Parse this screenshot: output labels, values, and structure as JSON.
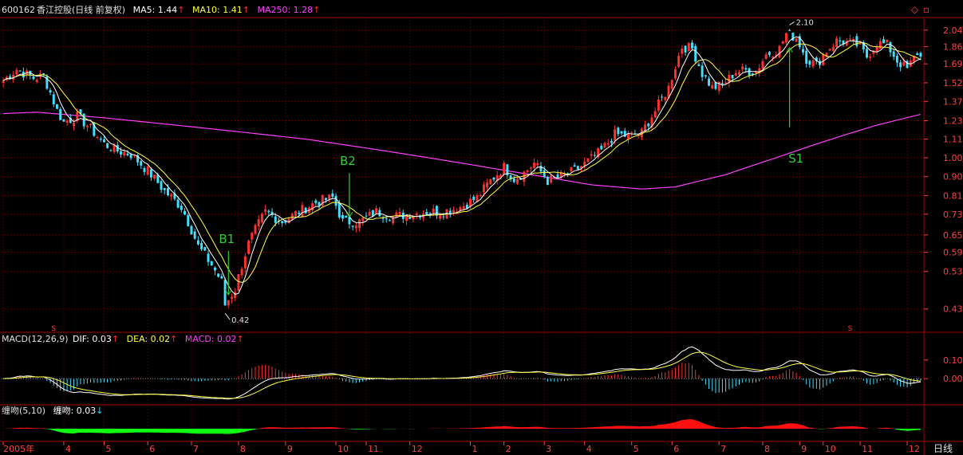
{
  "header": {
    "stock_code": "600162",
    "stock_name": "香江控股(日线 前复权)",
    "ma5_label": "MA5: 1.44",
    "ma10_label": "MA10: 1.41",
    "ma250_label": "MA250: 1.28",
    "up_arrow": "↑",
    "down_arrow": "↓"
  },
  "macd_header": {
    "label": "MACD(12,26,9)",
    "dif_label": "DIF: 0.03",
    "dea_label": "DEA: 0.02",
    "macd_label": "MACD: 0.02"
  },
  "chanwen_header": {
    "label": "缠吻(5,10)",
    "value_label": "缠吻: 0.03"
  },
  "period_label": "日线",
  "top_icons": {
    "diamond": "◇",
    "restore": "▫"
  },
  "colors": {
    "up": "#ff3030",
    "down": "#40e0ff",
    "ma5": "#ffffff",
    "ma10": "#ffff40",
    "ma250": "#ff40ff",
    "grid": "#800000",
    "signal": "#30d030",
    "axis_text": "#ff4040",
    "macd_pos": "#ff3030",
    "macd_neg": "#40e0ff",
    "chanwen_pos": "#ff1010",
    "chanwen_neg": "#10ff10"
  },
  "chart_data": [
    {
      "type": "candlestick",
      "title": "600162 香江控股(日线 前复权)",
      "scale": "log",
      "y_ticks": [
        "2.04",
        "1.86",
        "1.69",
        "1.52",
        "1.37",
        "1.23",
        "1.11",
        "1.00",
        "0.90",
        "0.81",
        "0.73",
        "0.65",
        "0.59",
        "0.53",
        "0.43"
      ],
      "ylim": [
        0.4,
        2.15
      ],
      "x_ticks": [
        "2005年",
        "4",
        "5",
        "6",
        "7",
        "8",
        "9",
        "10",
        "11",
        "12",
        "1",
        "2",
        "3",
        "4",
        "5",
        "6",
        "7",
        "8",
        "9",
        "10",
        "11",
        "12"
      ],
      "x_tick_pos": [
        0,
        18,
        30,
        43,
        56,
        70,
        84,
        99,
        108,
        121,
        139,
        149,
        161,
        173,
        187,
        199,
        213,
        226,
        237,
        244,
        255,
        269
      ],
      "n_bars": 274,
      "close_keypoints": [
        [
          0,
          1.54
        ],
        [
          4,
          1.64
        ],
        [
          9,
          1.56
        ],
        [
          12,
          1.58
        ],
        [
          16,
          1.3
        ],
        [
          18,
          1.22
        ],
        [
          22,
          1.26
        ],
        [
          25,
          1.2
        ],
        [
          30,
          1.08
        ],
        [
          34,
          1.04
        ],
        [
          38,
          1.02
        ],
        [
          43,
          0.93
        ],
        [
          48,
          0.83
        ],
        [
          53,
          0.76
        ],
        [
          58,
          0.61
        ],
        [
          62,
          0.55
        ],
        [
          65,
          0.5
        ],
        [
          66,
          0.44
        ],
        [
          69,
          0.48
        ],
        [
          73,
          0.62
        ],
        [
          78,
          0.74
        ],
        [
          83,
          0.7
        ],
        [
          88,
          0.74
        ],
        [
          93,
          0.78
        ],
        [
          98,
          0.8
        ],
        [
          101,
          0.7
        ],
        [
          106,
          0.7
        ],
        [
          111,
          0.74
        ],
        [
          116,
          0.72
        ],
        [
          121,
          0.73
        ],
        [
          126,
          0.74
        ],
        [
          131,
          0.74
        ],
        [
          136,
          0.76
        ],
        [
          141,
          0.8
        ],
        [
          145,
          0.88
        ],
        [
          149,
          0.95
        ],
        [
          152,
          0.89
        ],
        [
          155,
          0.92
        ],
        [
          158,
          0.97
        ],
        [
          162,
          0.88
        ],
        [
          166,
          0.9
        ],
        [
          170,
          0.93
        ],
        [
          174,
          0.98
        ],
        [
          178,
          1.04
        ],
        [
          182,
          1.14
        ],
        [
          186,
          1.13
        ],
        [
          190,
          1.15
        ],
        [
          194,
          1.3
        ],
        [
          198,
          1.48
        ],
        [
          202,
          1.86
        ],
        [
          205,
          1.84
        ],
        [
          208,
          1.6
        ],
        [
          211,
          1.48
        ],
        [
          214,
          1.5
        ],
        [
          218,
          1.62
        ],
        [
          221,
          1.63
        ],
        [
          224,
          1.62
        ],
        [
          227,
          1.78
        ],
        [
          231,
          1.84
        ],
        [
          233,
          2.0
        ],
        [
          236,
          1.96
        ],
        [
          239,
          1.74
        ],
        [
          242,
          1.68
        ],
        [
          245,
          1.82
        ],
        [
          248,
          1.92
        ],
        [
          251,
          1.91
        ],
        [
          254,
          1.88
        ],
        [
          257,
          1.76
        ],
        [
          260,
          1.9
        ],
        [
          263,
          1.88
        ],
        [
          266,
          1.72
        ],
        [
          269,
          1.64
        ],
        [
          272,
          1.8
        ],
        [
          274,
          1.7
        ]
      ],
      "ma250_keypoints": [
        [
          0,
          1.28
        ],
        [
          10,
          1.29
        ],
        [
          30,
          1.25
        ],
        [
          60,
          1.18
        ],
        [
          90,
          1.11
        ],
        [
          120,
          1.02
        ],
        [
          150,
          0.93
        ],
        [
          175,
          0.86
        ],
        [
          190,
          0.84
        ],
        [
          200,
          0.85
        ],
        [
          215,
          0.91
        ],
        [
          230,
          1.0
        ],
        [
          245,
          1.1
        ],
        [
          260,
          1.2
        ],
        [
          274,
          1.28
        ]
      ],
      "last_values": {
        "ma5": 1.44,
        "ma10": 1.41,
        "ma250": 1.28
      },
      "annotations": [
        {
          "text": "B1",
          "bar": 67,
          "kind": "buy"
        },
        {
          "text": "B2",
          "bar": 103,
          "kind": "buy"
        },
        {
          "text": "S1",
          "bar": 234,
          "kind": "sell"
        },
        {
          "text": "0.42",
          "bar": 66,
          "value": 0.42,
          "kind": "low"
        },
        {
          "text": "2.10",
          "bar": 234,
          "value": 2.1,
          "kind": "high"
        }
      ],
      "markers": [
        {
          "text": "S",
          "bar": 15
        },
        {
          "text": "S",
          "bar": 252
        }
      ]
    },
    {
      "type": "bar",
      "title": "MACD(12,26,9)",
      "y_ticks": [
        "0.10",
        "0.00"
      ],
      "ylim": [
        -0.11,
        0.18
      ],
      "series": [
        {
          "name": "DIF",
          "value": 0.03
        },
        {
          "name": "DEA",
          "value": 0.02
        },
        {
          "name": "MACD",
          "value": 0.02
        }
      ]
    },
    {
      "type": "area",
      "title": "缠吻(5,10)",
      "series": [
        {
          "name": "缠吻",
          "value": 0.03
        }
      ]
    }
  ]
}
